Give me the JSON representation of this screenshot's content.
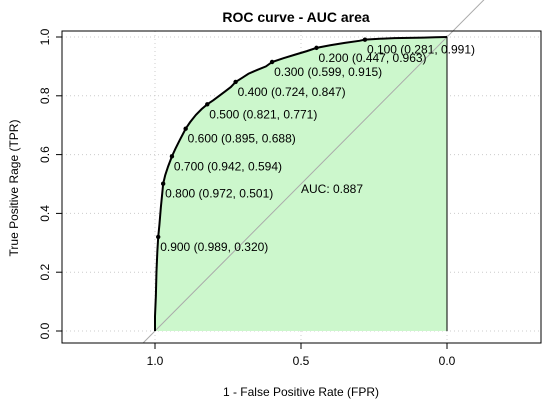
{
  "chart_data": {
    "type": "area",
    "title": "ROC curve - AUC area",
    "xlabel": "1 - False Positive Rate (FPR)",
    "ylabel": "True Positive Rage (TPR)",
    "x_reversed": true,
    "xlim": [
      1.0,
      0.0
    ],
    "ylim": [
      0.0,
      1.0
    ],
    "x_ticks": [
      1.0,
      0.5,
      0.0
    ],
    "x_tick_labels": [
      "1.0",
      "0.5",
      "0.0"
    ],
    "y_ticks": [
      0.0,
      0.2,
      0.4,
      0.6,
      0.8,
      1.0
    ],
    "y_tick_labels": [
      "0.0",
      "0.2",
      "0.4",
      "0.6",
      "0.8",
      "1.0"
    ],
    "grid": true,
    "fill_color": "#ccf7cc",
    "line_color": "#000000",
    "diagonal_color": "#aaaaaa",
    "grid_color": "#cccccc",
    "series": [
      {
        "x": [
          1.0,
          1.0,
          0.997,
          0.995,
          0.992,
          0.989,
          0.985,
          0.98,
          0.975,
          0.972,
          0.965,
          0.955,
          0.942,
          0.93,
          0.915,
          0.895,
          0.88,
          0.86,
          0.84,
          0.821,
          0.8,
          0.78,
          0.76,
          0.74,
          0.724,
          0.7,
          0.68,
          0.65,
          0.62,
          0.599,
          0.56,
          0.52,
          0.48,
          0.447,
          0.4,
          0.35,
          0.3,
          0.281,
          0.23,
          0.18,
          0.13,
          0.08,
          0.04,
          0.0
        ],
        "y": [
          0.0,
          0.05,
          0.12,
          0.2,
          0.27,
          0.32,
          0.36,
          0.42,
          0.47,
          0.501,
          0.53,
          0.56,
          0.594,
          0.62,
          0.65,
          0.688,
          0.71,
          0.735,
          0.755,
          0.771,
          0.785,
          0.8,
          0.815,
          0.83,
          0.847,
          0.862,
          0.875,
          0.888,
          0.9,
          0.915,
          0.928,
          0.94,
          0.952,
          0.963,
          0.972,
          0.98,
          0.987,
          0.991,
          0.994,
          0.996,
          0.997,
          0.998,
          0.999,
          1.0
        ]
      }
    ],
    "threshold_points": [
      {
        "label": "0.100 (0.281, 0.991)",
        "x": 0.281,
        "y": 0.991
      },
      {
        "label": "0.200 (0.447, 0.963)",
        "x": 0.447,
        "y": 0.963
      },
      {
        "label": "0.300 (0.599, 0.915)",
        "x": 0.599,
        "y": 0.915
      },
      {
        "label": "0.400 (0.724, 0.847)",
        "x": 0.724,
        "y": 0.847
      },
      {
        "label": "0.500 (0.821, 0.771)",
        "x": 0.821,
        "y": 0.771
      },
      {
        "label": "0.600 (0.895, 0.688)",
        "x": 0.895,
        "y": 0.688
      },
      {
        "label": "0.700 (0.942, 0.594)",
        "x": 0.942,
        "y": 0.594
      },
      {
        "label": "0.800 (0.972, 0.501)",
        "x": 0.972,
        "y": 0.501
      },
      {
        "label": "0.900 (0.989, 0.320)",
        "x": 0.989,
        "y": 0.32
      }
    ],
    "auc_label": "AUC: 0.887",
    "auc_label_position": {
      "x": 0.5,
      "y": 0.47
    }
  }
}
